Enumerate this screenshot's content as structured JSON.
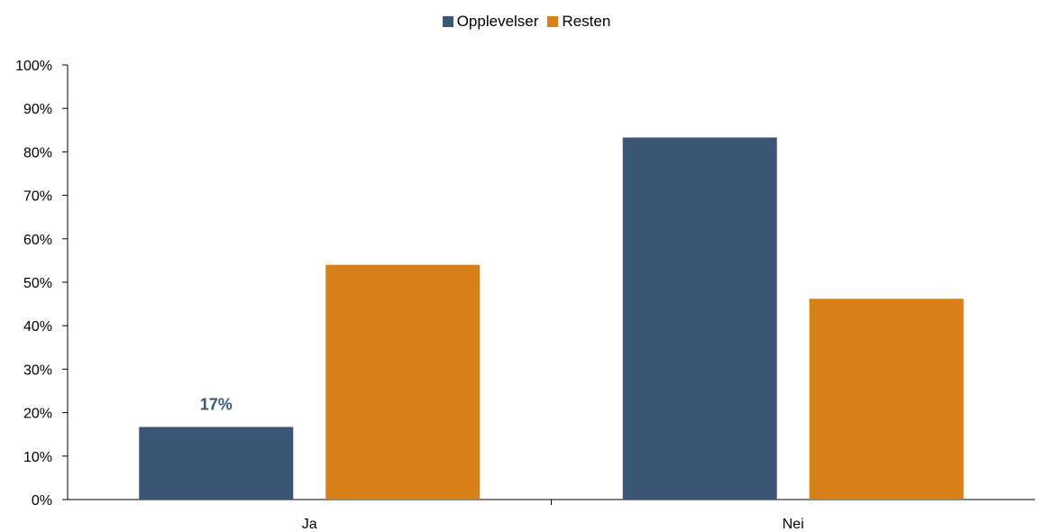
{
  "chart_data": {
    "type": "bar",
    "categories": [
      "Ja",
      "Nei"
    ],
    "series": [
      {
        "name": "Opplevelser",
        "values": [
          0.167,
          0.833
        ],
        "color": "#3a5674"
      },
      {
        "name": "Resten",
        "values": [
          0.54,
          0.462
        ],
        "color": "#d77f19"
      }
    ],
    "data_labels": [
      {
        "series": 0,
        "category": 0,
        "text": "17%"
      }
    ],
    "ylim": [
      0,
      1
    ],
    "yticks": [
      0,
      0.1,
      0.2,
      0.3,
      0.4,
      0.5,
      0.6,
      0.7,
      0.8,
      0.9,
      1.0
    ],
    "ytick_labels": [
      "0%",
      "10%",
      "20%",
      "30%",
      "40%",
      "50%",
      "60%",
      "70%",
      "80%",
      "90%",
      "100%"
    ],
    "legend_position": "top-center",
    "grid": false
  }
}
